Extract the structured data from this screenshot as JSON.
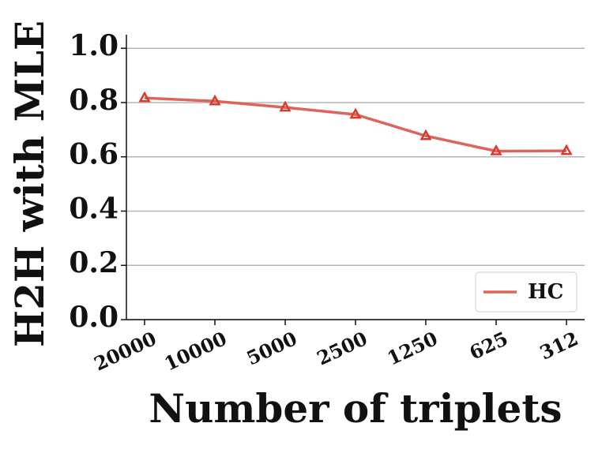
{
  "chart_data": {
    "type": "line",
    "x_label": "Number of triplets",
    "y_label": "H2H with MLE",
    "categories": [
      "20000",
      "10000",
      "5000",
      "2500",
      "1250",
      "625",
      "312"
    ],
    "series": [
      {
        "name": "HC",
        "color": "#e0635a",
        "marker_color": "#d93a2e",
        "values": [
          0.817,
          0.805,
          0.782,
          0.756,
          0.677,
          0.621,
          0.622
        ]
      }
    ],
    "ylim": [
      0,
      1.05
    ],
    "yticks": [
      {
        "value": 0,
        "label": "0.0"
      },
      {
        "value": 0.2,
        "label": "0.2"
      },
      {
        "value": 0.4,
        "label": "0.4"
      },
      {
        "value": 0.6,
        "label": "0.6"
      },
      {
        "value": 0.8,
        "label": "0.8"
      },
      {
        "value": 1.0,
        "label": "1.0"
      }
    ],
    "grid": true,
    "legend": "lower right"
  }
}
